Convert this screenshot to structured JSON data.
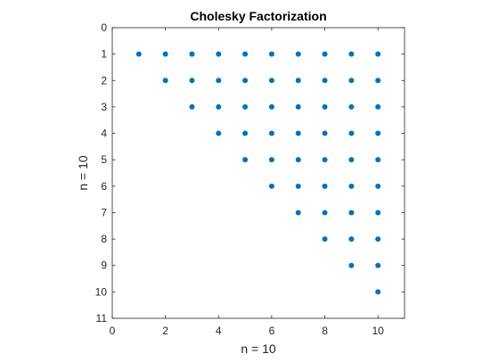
{
  "chart_data": {
    "type": "scatter",
    "title": "Cholesky Factorization",
    "xlabel": "n = 10",
    "ylabel": "n = 10",
    "xlim": [
      0,
      11
    ],
    "ylim": [
      0,
      11
    ],
    "y_reversed": true,
    "grid": false,
    "box": true,
    "x_ticks": [
      0,
      2,
      4,
      6,
      8,
      10
    ],
    "y_ticks": [
      0,
      1,
      2,
      3,
      4,
      5,
      6,
      7,
      8,
      9,
      10,
      11
    ],
    "marker_color": "#0072BD",
    "points": [
      [
        1,
        1
      ],
      [
        2,
        1
      ],
      [
        3,
        1
      ],
      [
        4,
        1
      ],
      [
        5,
        1
      ],
      [
        6,
        1
      ],
      [
        7,
        1
      ],
      [
        8,
        1
      ],
      [
        9,
        1
      ],
      [
        10,
        1
      ],
      [
        2,
        2
      ],
      [
        3,
        2
      ],
      [
        4,
        2
      ],
      [
        5,
        2
      ],
      [
        6,
        2
      ],
      [
        7,
        2
      ],
      [
        8,
        2
      ],
      [
        9,
        2
      ],
      [
        10,
        2
      ],
      [
        3,
        3
      ],
      [
        4,
        3
      ],
      [
        5,
        3
      ],
      [
        6,
        3
      ],
      [
        7,
        3
      ],
      [
        8,
        3
      ],
      [
        9,
        3
      ],
      [
        10,
        3
      ],
      [
        4,
        4
      ],
      [
        5,
        4
      ],
      [
        6,
        4
      ],
      [
        7,
        4
      ],
      [
        8,
        4
      ],
      [
        9,
        4
      ],
      [
        10,
        4
      ],
      [
        5,
        5
      ],
      [
        6,
        5
      ],
      [
        7,
        5
      ],
      [
        8,
        5
      ],
      [
        9,
        5
      ],
      [
        10,
        5
      ],
      [
        6,
        6
      ],
      [
        7,
        6
      ],
      [
        8,
        6
      ],
      [
        9,
        6
      ],
      [
        10,
        6
      ],
      [
        7,
        7
      ],
      [
        8,
        7
      ],
      [
        9,
        7
      ],
      [
        10,
        7
      ],
      [
        8,
        8
      ],
      [
        9,
        8
      ],
      [
        10,
        8
      ],
      [
        9,
        9
      ],
      [
        10,
        9
      ],
      [
        10,
        10
      ]
    ]
  }
}
